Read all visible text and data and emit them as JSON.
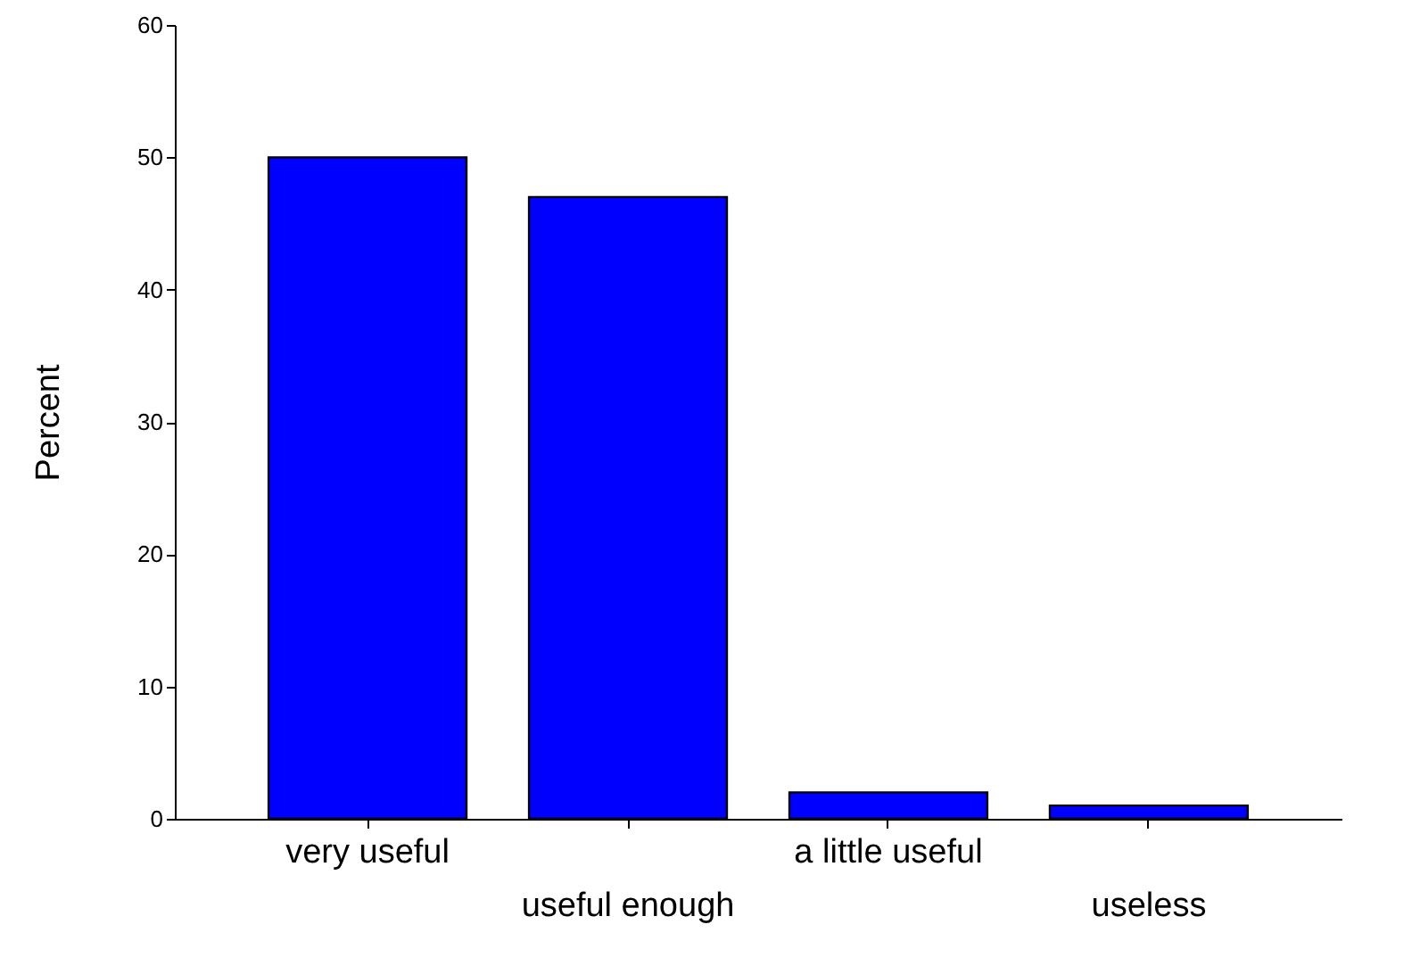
{
  "chart_data": {
    "type": "bar",
    "ylabel": "Percent",
    "categories": [
      "very useful",
      "useful enough",
      "a little useful",
      "useless"
    ],
    "values": [
      50,
      47,
      2,
      1
    ],
    "color": "#0000ff",
    "ylim": [
      0,
      60
    ],
    "yticks": [
      0,
      10,
      20,
      30,
      40,
      50,
      60
    ],
    "grid": false
  }
}
